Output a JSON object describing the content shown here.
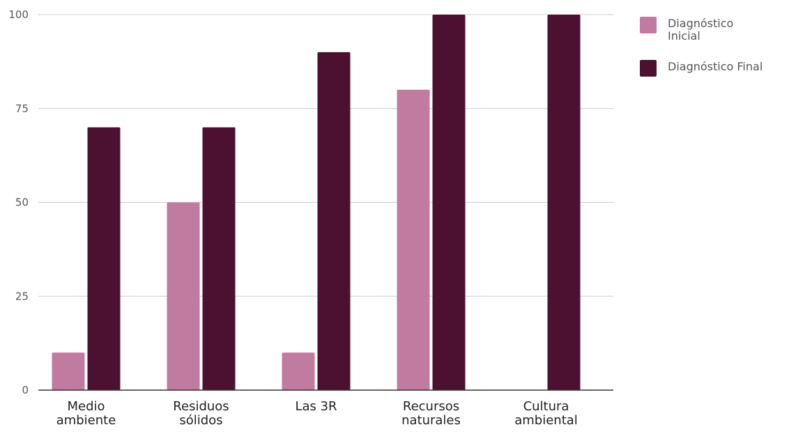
{
  "chart_data": {
    "type": "bar",
    "title": "",
    "xlabel": "",
    "ylabel": "",
    "categories": [
      [
        "Medio",
        "ambiente"
      ],
      [
        "Residuos",
        "sólidos"
      ],
      [
        "Las 3R"
      ],
      [
        "Recursos",
        "naturales"
      ],
      [
        "Cultura",
        "ambiental"
      ]
    ],
    "series": [
      {
        "name": "Diagnóstico Inicial",
        "color": "#c27ba0",
        "values": [
          10,
          50,
          10,
          80,
          0
        ]
      },
      {
        "name": "Diagnóstico Final",
        "color": "#4c1130",
        "values": [
          70,
          70,
          90,
          100,
          100
        ]
      }
    ],
    "ylim": [
      0,
      100
    ],
    "yticks": [
      "0",
      "25",
      "50",
      "75",
      "100"
    ],
    "grid": true,
    "legend_position": "right"
  }
}
